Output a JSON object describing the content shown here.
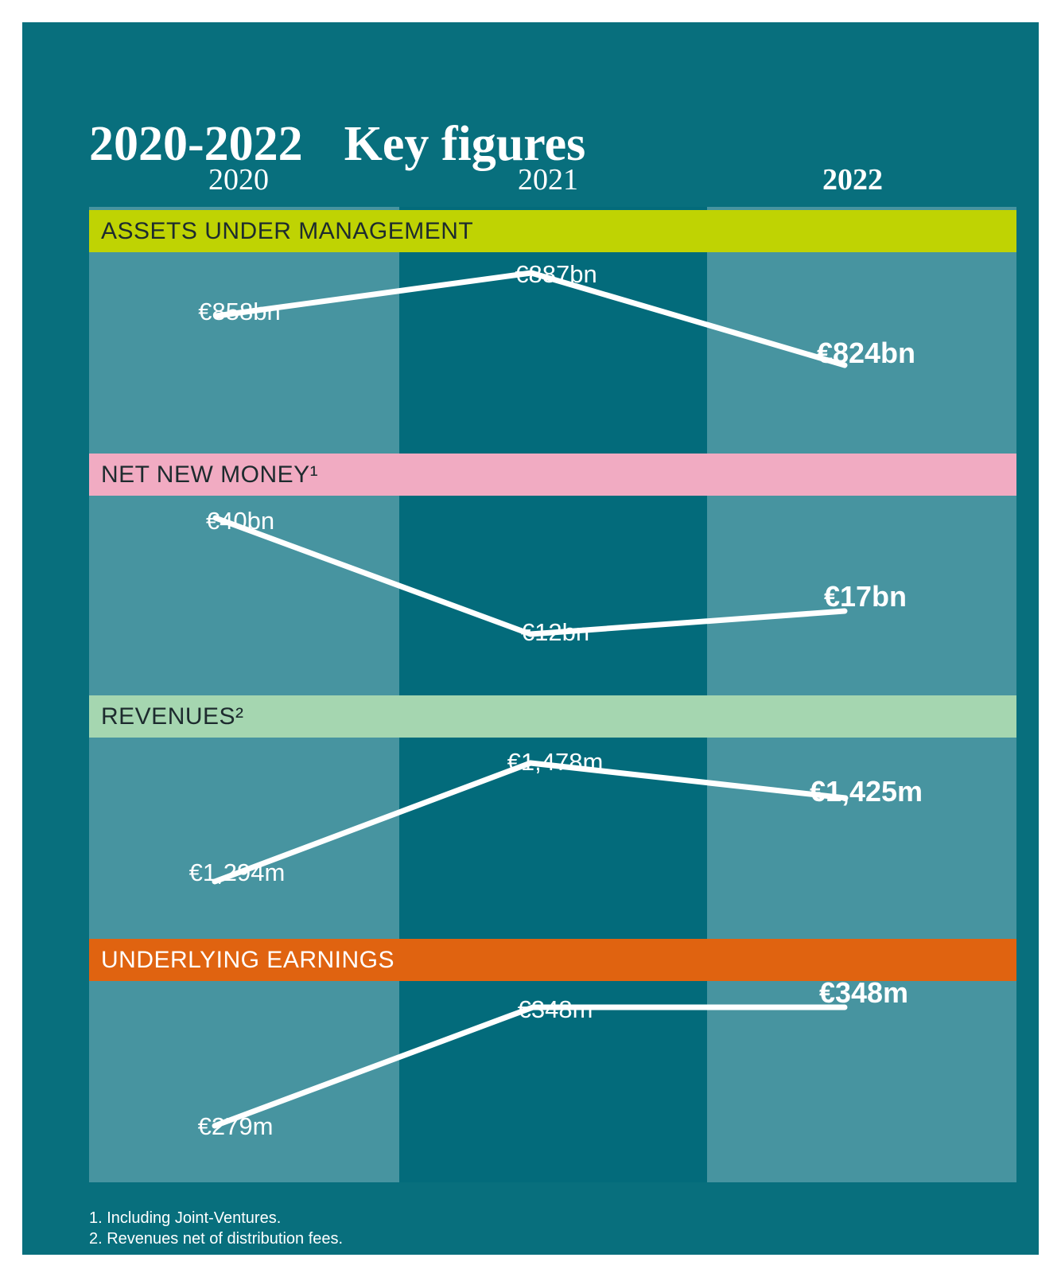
{
  "title": {
    "range": "2020-2022",
    "heading": "Key figures"
  },
  "columns": [
    "2020",
    "2021",
    "2022"
  ],
  "sections": [
    {
      "label": "ASSETS UNDER MANAGEMENT",
      "accent": "#BFD303",
      "label_color": "#1D2B2E",
      "values": [
        "€858bn",
        "€887bn",
        "€824bn"
      ],
      "line_points": [
        [
          272,
          397
        ],
        [
          668,
          343
        ],
        [
          1062,
          459
        ]
      ]
    },
    {
      "label": "NET NEW MONEY¹",
      "accent": "#F1ABC2",
      "label_color": "#1D2B2E",
      "values": [
        "€40bn",
        "€12bn",
        "€17bn"
      ],
      "line_points": [
        [
          271,
          651
        ],
        [
          667,
          797
        ],
        [
          1062,
          768
        ]
      ]
    },
    {
      "label": "REVENUES²",
      "accent": "#A5D6B0",
      "label_color": "#1D2B2E",
      "values": [
        "€1,294m",
        "€1,478m",
        "€1,425m"
      ],
      "line_points": [
        [
          270,
          1108
        ],
        [
          667,
          959
        ],
        [
          1063,
          1003
        ]
      ]
    },
    {
      "label": "UNDERLYING EARNINGS",
      "accent": "#E06310",
      "label_color": "#FFFFFF",
      "values": [
        "€279m",
        "€348m",
        "€348m"
      ],
      "line_points": [
        [
          270,
          1415
        ],
        [
          670,
          1266
        ],
        [
          1062,
          1266
        ]
      ]
    }
  ],
  "footnotes": [
    "1. Including Joint-Ventures.",
    "2. Revenues net of distribution fees."
  ],
  "style": {
    "panel_bg": "#086F7D",
    "band_light": "#4794A0",
    "band_dark": "#036B7B",
    "line_color": "#FFFFFF",
    "page_margin_bg": "#FFFFFF"
  },
  "chart_data": {
    "type": "line",
    "x": [
      "2020",
      "2021",
      "2022"
    ],
    "series": [
      {
        "name": "Assets under management",
        "unit": "€bn",
        "values": [
          858,
          887,
          824
        ]
      },
      {
        "name": "Net new money (incl. joint-ventures)",
        "unit": "€bn",
        "values": [
          40,
          12,
          17
        ]
      },
      {
        "name": "Revenues (net of distribution fees)",
        "unit": "€m",
        "values": [
          1294,
          1478,
          1425
        ]
      },
      {
        "name": "Underlying earnings",
        "unit": "€m",
        "values": [
          279,
          348,
          348
        ]
      }
    ],
    "title": "2020-2022 Key figures",
    "xlabel": "",
    "ylabel": "",
    "grid": false,
    "legend": "none",
    "notes": "Each series drawn as separate white trend line in its own stacked panel; point labels shown next to each vertex; 2022 values emphasized in bold."
  }
}
